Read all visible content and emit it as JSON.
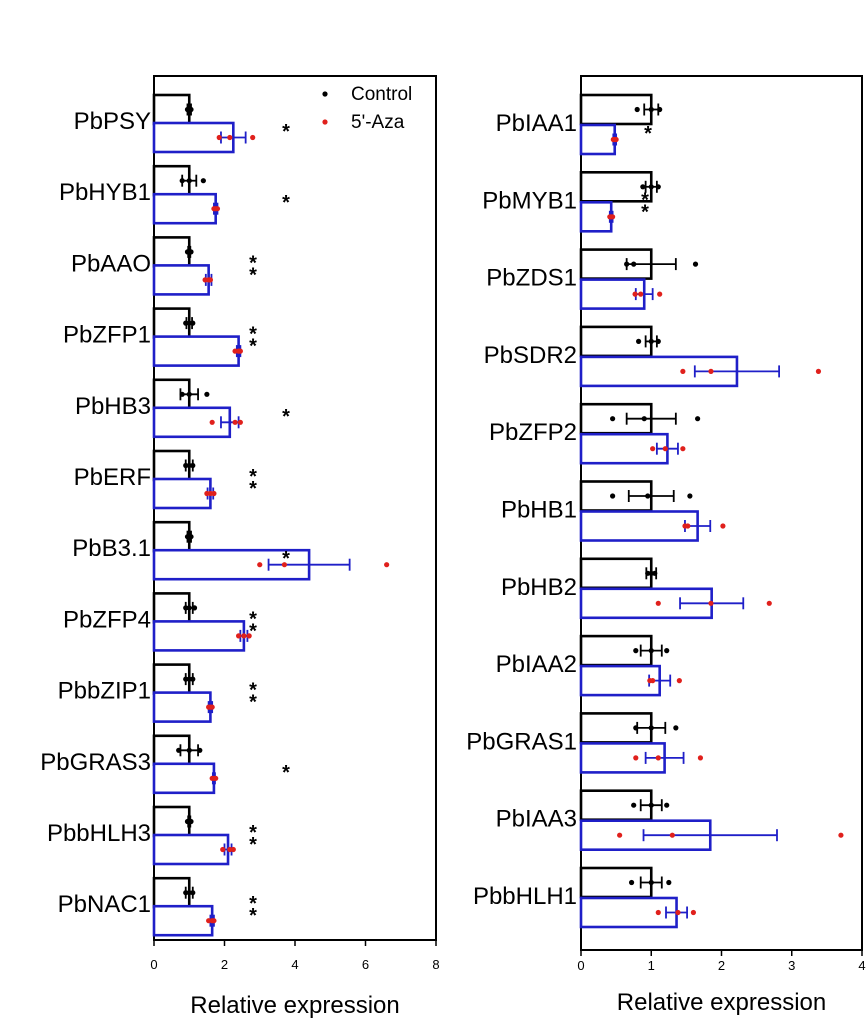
{
  "chart_data": [
    {
      "type": "bar",
      "orientation": "horizontal",
      "xlabel": "Relative expression",
      "xlim": [
        0,
        8
      ],
      "xticks": [
        "0",
        "2",
        "4",
        "6",
        "8"
      ],
      "legend": {
        "placement": "top-right",
        "entries": [
          "Control",
          "5'-Aza"
        ]
      },
      "colors": {
        "Control": "#000000",
        "5'-Aza": "#1f1fc8",
        "aza_points": "#e0201c"
      },
      "categories": [
        "PbPSY",
        "PbHYB1",
        "PbAAO",
        "PbZFP1",
        "PbHB3",
        "PbERF",
        "PbB3.1",
        "PbZFP4",
        "PbbZIP1",
        "PbGRAS3",
        "PbbHLH3",
        "PbNAC1"
      ],
      "series": [
        {
          "name": "Control",
          "values": [
            1.0,
            1.0,
            1.0,
            1.0,
            1.0,
            1.0,
            1.0,
            1.0,
            1.0,
            1.0,
            1.0,
            1.0
          ],
          "errors": [
            0.05,
            0.2,
            0.03,
            0.08,
            0.25,
            0.1,
            0.05,
            0.1,
            0.1,
            0.25,
            0.03,
            0.1
          ],
          "points": [
            [
              0.95,
              1.0,
              1.05
            ],
            [
              0.8,
              1.0,
              1.4
            ],
            [
              0.95,
              1.0,
              1.05
            ],
            [
              0.9,
              1.0,
              1.1
            ],
            [
              0.8,
              1.0,
              1.5
            ],
            [
              0.9,
              1.0,
              1.1
            ],
            [
              0.95,
              1.0,
              1.05
            ],
            [
              0.9,
              1.0,
              1.15
            ],
            [
              0.9,
              1.0,
              1.1
            ],
            [
              0.7,
              1.0,
              1.3
            ],
            [
              0.95,
              1.0,
              1.05
            ],
            [
              0.9,
              1.0,
              1.1
            ]
          ]
        },
        {
          "name": "5'-Aza",
          "values": [
            2.25,
            1.75,
            1.55,
            2.4,
            2.15,
            1.6,
            4.4,
            2.55,
            1.6,
            1.7,
            2.1,
            1.65
          ],
          "errors": [
            0.35,
            0.05,
            0.08,
            0.05,
            0.25,
            0.08,
            1.15,
            0.1,
            0.05,
            0.03,
            0.1,
            0.05
          ],
          "points": [
            [
              1.85,
              2.15,
              2.8
            ],
            [
              1.7,
              1.75,
              1.8
            ],
            [
              1.45,
              1.55,
              1.6
            ],
            [
              2.3,
              2.4,
              2.45
            ],
            [
              1.65,
              2.3,
              2.45
            ],
            [
              1.5,
              1.6,
              1.7
            ],
            [
              3.0,
              3.7,
              6.6
            ],
            [
              2.4,
              2.55,
              2.7
            ],
            [
              1.55,
              1.6,
              1.65
            ],
            [
              1.65,
              1.7,
              1.75
            ],
            [
              1.95,
              2.15,
              2.25
            ],
            [
              1.55,
              1.65,
              1.7
            ]
          ]
        }
      ],
      "significance": [
        "*",
        "*",
        "**",
        "**",
        "*",
        "**",
        "*",
        "**",
        "**",
        "*",
        "**",
        "**"
      ]
    },
    {
      "type": "bar",
      "orientation": "horizontal",
      "xlabel": "Relative expression",
      "xlim": [
        0,
        4
      ],
      "xticks": [
        "0",
        "1",
        "2",
        "3",
        "4"
      ],
      "colors": {
        "Control": "#000000",
        "5'-Aza": "#1f1fc8",
        "aza_points": "#e0201c"
      },
      "categories": [
        "PbIAA1",
        "PbMYB1",
        "PbZDS1",
        "PbSDR2",
        "PbZFP2",
        "PbHB1",
        "PbHB2",
        "PbIAA2",
        "PbGRAS1",
        "PbIAA3",
        "PbbHLH1"
      ],
      "series": [
        {
          "name": "Control",
          "values": [
            1.0,
            1.0,
            1.0,
            1.0,
            1.0,
            1.0,
            1.0,
            1.0,
            1.0,
            1.0,
            1.0
          ],
          "errors": [
            0.1,
            0.08,
            0.35,
            0.08,
            0.35,
            0.32,
            0.07,
            0.15,
            0.2,
            0.15,
            0.15
          ],
          "points": [
            [
              0.8,
              1.0,
              1.12
            ],
            [
              0.88,
              1.0,
              1.1
            ],
            [
              0.65,
              0.75,
              1.63
            ],
            [
              0.82,
              1.0,
              1.1
            ],
            [
              0.45,
              0.9,
              1.66
            ],
            [
              0.45,
              0.95,
              1.55
            ],
            [
              0.95,
              1.0,
              1.05
            ],
            [
              0.78,
              1.0,
              1.22
            ],
            [
              0.78,
              1.0,
              1.35
            ],
            [
              0.75,
              1.0,
              1.22
            ],
            [
              0.72,
              1.0,
              1.25
            ]
          ]
        },
        {
          "name": "5'-Aza",
          "values": [
            0.48,
            0.43,
            0.9,
            2.22,
            1.23,
            1.66,
            1.86,
            1.12,
            1.19,
            1.84,
            1.36
          ],
          "errors": [
            0.02,
            0.02,
            0.12,
            0.6,
            0.15,
            0.18,
            0.45,
            0.15,
            0.27,
            0.95,
            0.15
          ],
          "points": [
            [
              0.46,
              0.48,
              0.5
            ],
            [
              0.41,
              0.43,
              0.45
            ],
            [
              0.77,
              0.85,
              1.12
            ],
            [
              1.45,
              1.85,
              3.38
            ],
            [
              1.02,
              1.2,
              1.45
            ],
            [
              1.48,
              1.52,
              2.02
            ],
            [
              1.1,
              1.85,
              2.68
            ],
            [
              0.98,
              1.02,
              1.4
            ],
            [
              0.78,
              1.1,
              1.7
            ],
            [
              0.55,
              1.3,
              3.7
            ],
            [
              1.1,
              1.38,
              1.6
            ]
          ]
        }
      ],
      "significance": [
        "*",
        "**",
        "",
        "",
        "",
        "",
        "",
        "",
        "",
        "",
        ""
      ]
    }
  ]
}
